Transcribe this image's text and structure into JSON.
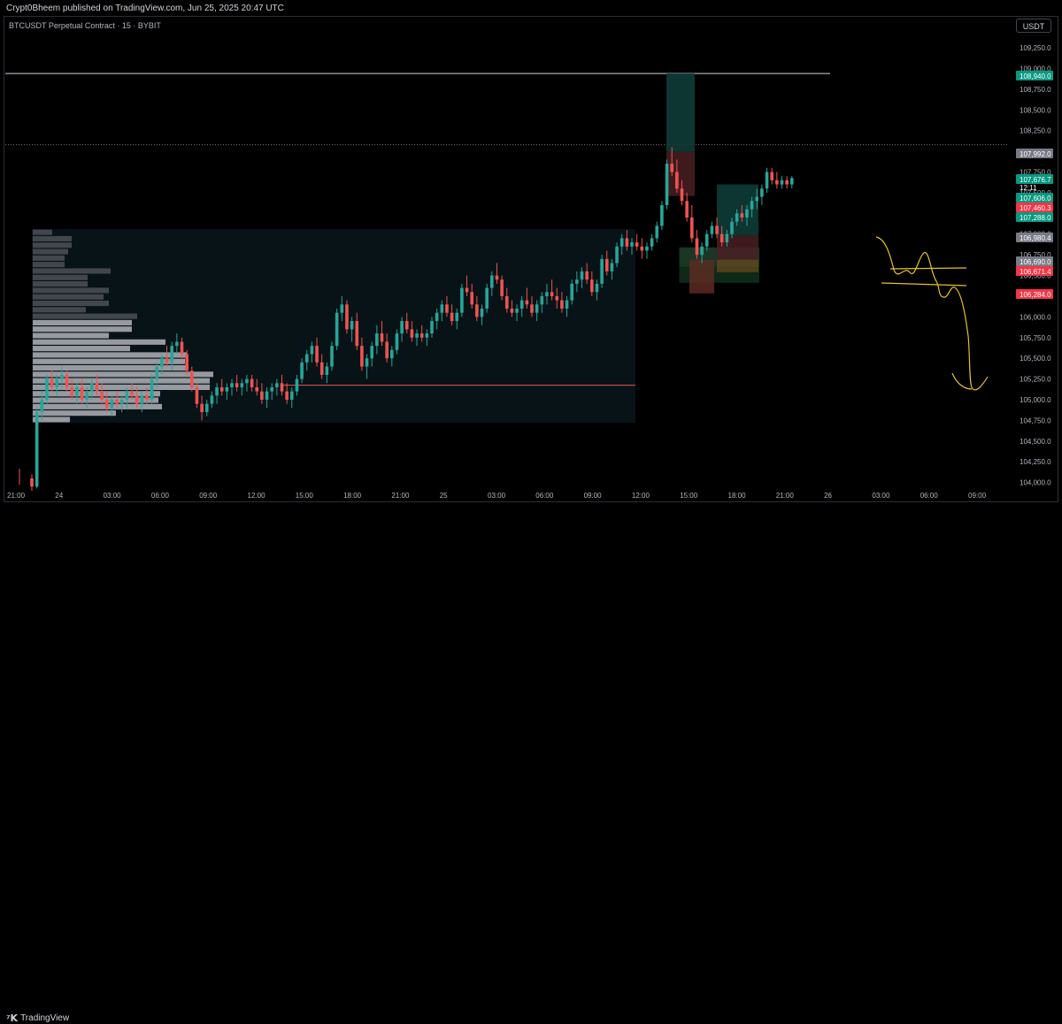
{
  "header": {
    "published_text": "Crypt0Bheem published on TradingView.com, Jun 25, 2025 20:47 UTC"
  },
  "chart": {
    "symbol_label": "BTCUSDT Perpetual Contract · 15 · BYBIT",
    "currency": "USDT"
  },
  "footer": {
    "logo_text": "TradingView"
  },
  "colors": {
    "up": "#26a69a",
    "down": "#ef5350",
    "bg": "#000000",
    "annotation": "#e6c229",
    "grid_text": "#b2b5be"
  },
  "chart_data": {
    "type": "candlestick",
    "interval": "15",
    "exchange": "BYBIT",
    "ylim": [
      103900,
      109400
    ],
    "price_ticks": [
      "109,250.0",
      "109,000.0",
      "108,750.0",
      "108,500.0",
      "108,250.0",
      "108,000.0",
      "107,750.0",
      "107,500.0",
      "107,250.0",
      "107,000.0",
      "106,750.0",
      "106,500.0",
      "106,250.0",
      "106,000.0",
      "105,750.0",
      "105,500.0",
      "105,250.0",
      "105,000.0",
      "104,750.0",
      "104,500.0",
      "104,250.0",
      "104,000.0"
    ],
    "time_ticks": [
      "21:00",
      "24",
      "03:00",
      "06:00",
      "09:00",
      "12:00",
      "15:00",
      "18:00",
      "21:00",
      "25",
      "03:00",
      "06:00",
      "09:00",
      "12:00",
      "15:00",
      "18:00",
      "21:00",
      "26",
      "03:00",
      "06:00",
      "09:00"
    ],
    "price_labels": [
      {
        "text": "108,940.0",
        "value": 108940,
        "kind": "up"
      },
      {
        "text": "107,992.0",
        "value": 107992,
        "kind": "gray"
      },
      {
        "text": "107,676.7",
        "value": 107676.7,
        "kind": "up"
      },
      {
        "text": "12:11",
        "value": 107600,
        "kind": "up"
      },
      {
        "text": "107,606.0",
        "value": 107606,
        "kind": "up"
      },
      {
        "text": "107,460.3",
        "value": 107460.3,
        "kind": "down"
      },
      {
        "text": "107,288.0",
        "value": 107288,
        "kind": "up"
      },
      {
        "text": "106,980.4",
        "value": 106980.4,
        "kind": "gray"
      },
      {
        "text": "106,690.0",
        "value": 106690,
        "kind": "gray"
      },
      {
        "text": "106,671.4",
        "value": 106671.4,
        "kind": "down"
      },
      {
        "text": "106,284.0",
        "value": 106284,
        "kind": "down"
      }
    ],
    "horizontal_lines": [
      {
        "value": 108940,
        "style": "solid",
        "color": "#d1d4dc"
      },
      {
        "value": 108080,
        "style": "dotted",
        "color": "#787b86"
      },
      {
        "value": 105175,
        "style": "solid",
        "color": "#ef5350"
      }
    ],
    "candles": [
      [
        104050,
        104100,
        103900,
        103950
      ],
      [
        103950,
        104900,
        103930,
        104850
      ],
      [
        104850,
        105100,
        104750,
        105000
      ],
      [
        105000,
        105300,
        104950,
        105250
      ],
      [
        105250,
        105350,
        105100,
        105150
      ],
      [
        105150,
        105300,
        105050,
        105250
      ],
      [
        105250,
        105400,
        105150,
        105300
      ],
      [
        105300,
        105350,
        105100,
        105150
      ],
      [
        105150,
        105250,
        105000,
        105050
      ],
      [
        105050,
        105200,
        104950,
        105150
      ],
      [
        105150,
        105250,
        104950,
        105000
      ],
      [
        105000,
        105150,
        104900,
        105100
      ],
      [
        105100,
        105250,
        105000,
        105200
      ],
      [
        105200,
        105300,
        105050,
        105100
      ],
      [
        105100,
        105200,
        104950,
        105000
      ],
      [
        105000,
        105100,
        104850,
        104900
      ],
      [
        104900,
        105050,
        104800,
        105000
      ],
      [
        105000,
        105100,
        104900,
        104950
      ],
      [
        104950,
        105050,
        104850,
        105000
      ],
      [
        105000,
        105150,
        104900,
        105100
      ],
      [
        105100,
        105200,
        105000,
        105050
      ],
      [
        105050,
        105150,
        104900,
        104950
      ],
      [
        104950,
        105100,
        104850,
        105050
      ],
      [
        105050,
        105150,
        104950,
        105000
      ],
      [
        105000,
        105300,
        104950,
        105250
      ],
      [
        105250,
        105450,
        105150,
        105400
      ],
      [
        105400,
        105550,
        105300,
        105500
      ],
      [
        105500,
        105650,
        105400,
        105450
      ],
      [
        105450,
        105700,
        105350,
        105650
      ],
      [
        105650,
        105800,
        105550,
        105700
      ],
      [
        105700,
        105750,
        105500,
        105550
      ],
      [
        105550,
        105600,
        105300,
        105350
      ],
      [
        105350,
        105400,
        105100,
        105150
      ],
      [
        105150,
        105200,
        104900,
        104950
      ],
      [
        104950,
        105050,
        104750,
        104850
      ],
      [
        104850,
        105000,
        104800,
        104950
      ],
      [
        104950,
        105100,
        104900,
        105050
      ],
      [
        105050,
        105200,
        104950,
        105150
      ],
      [
        105150,
        105250,
        105050,
        105100
      ],
      [
        105100,
        105200,
        105000,
        105150
      ],
      [
        105150,
        105250,
        105050,
        105200
      ],
      [
        105200,
        105300,
        105100,
        105150
      ],
      [
        105150,
        105250,
        105050,
        105200
      ],
      [
        105200,
        105300,
        105100,
        105250
      ],
      [
        105250,
        105300,
        105100,
        105150
      ],
      [
        105150,
        105250,
        105050,
        105100
      ],
      [
        105100,
        105200,
        104950,
        105000
      ],
      [
        105000,
        105150,
        104900,
        105100
      ],
      [
        105100,
        105200,
        105000,
        105150
      ],
      [
        105150,
        105250,
        105050,
        105200
      ],
      [
        105200,
        105300,
        105050,
        105100
      ],
      [
        105100,
        105200,
        104950,
        105000
      ],
      [
        105000,
        105150,
        104900,
        105100
      ],
      [
        105100,
        105300,
        105050,
        105250
      ],
      [
        105250,
        105500,
        105200,
        105450
      ],
      [
        105450,
        105600,
        105350,
        105550
      ],
      [
        105550,
        105700,
        105450,
        105650
      ],
      [
        105650,
        105750,
        105400,
        105450
      ],
      [
        105450,
        105550,
        105250,
        105300
      ],
      [
        105300,
        105450,
        105200,
        105400
      ],
      [
        105400,
        105700,
        105350,
        105650
      ],
      [
        105650,
        106100,
        105600,
        106050
      ],
      [
        106050,
        106250,
        105950,
        106150
      ],
      [
        106150,
        106200,
        105800,
        105850
      ],
      [
        105850,
        106000,
        105700,
        105950
      ],
      [
        105950,
        106050,
        105600,
        105650
      ],
      [
        105650,
        105750,
        105350,
        105400
      ],
      [
        105400,
        105550,
        105250,
        105500
      ],
      [
        105500,
        105700,
        105400,
        105650
      ],
      [
        105650,
        105900,
        105550,
        105800
      ],
      [
        105800,
        105950,
        105650,
        105700
      ],
      [
        105700,
        105800,
        105450,
        105500
      ],
      [
        105500,
        105650,
        105400,
        105600
      ],
      [
        105600,
        105850,
        105550,
        105800
      ],
      [
        105800,
        106000,
        105700,
        105950
      ],
      [
        105950,
        106050,
        105800,
        105850
      ],
      [
        105850,
        105950,
        105700,
        105750
      ],
      [
        105750,
        105850,
        105650,
        105800
      ],
      [
        105800,
        105900,
        105700,
        105750
      ],
      [
        105750,
        105850,
        105650,
        105800
      ],
      [
        105800,
        106000,
        105750,
        105950
      ],
      [
        105950,
        106100,
        105850,
        106050
      ],
      [
        106050,
        106200,
        105950,
        106150
      ],
      [
        106150,
        106250,
        106000,
        106050
      ],
      [
        106050,
        106150,
        105900,
        105950
      ],
      [
        105950,
        106100,
        105850,
        106050
      ],
      [
        106050,
        106400,
        106000,
        106350
      ],
      [
        106350,
        106500,
        106250,
        106300
      ],
      [
        106300,
        106400,
        106100,
        106150
      ],
      [
        106150,
        106250,
        105950,
        106000
      ],
      [
        106000,
        106150,
        105900,
        106100
      ],
      [
        106100,
        106400,
        106050,
        106350
      ],
      [
        106350,
        106550,
        106250,
        106500
      ],
      [
        106500,
        106650,
        106400,
        106450
      ],
      [
        106450,
        106500,
        106200,
        106250
      ],
      [
        106250,
        106350,
        106050,
        106100
      ],
      [
        106100,
        106200,
        106000,
        106050
      ],
      [
        106050,
        106150,
        105950,
        106100
      ],
      [
        106100,
        106250,
        106000,
        106200
      ],
      [
        106200,
        106350,
        106100,
        106150
      ],
      [
        106150,
        106250,
        106000,
        106050
      ],
      [
        106050,
        106200,
        105950,
        106150
      ],
      [
        106150,
        106300,
        106050,
        106250
      ],
      [
        106250,
        106400,
        106150,
        106300
      ],
      [
        106300,
        106450,
        106200,
        106250
      ],
      [
        106250,
        106350,
        106100,
        106200
      ],
      [
        106200,
        106300,
        106050,
        106100
      ],
      [
        106100,
        106250,
        106000,
        106200
      ],
      [
        106200,
        106450,
        106150,
        106400
      ],
      [
        106400,
        106550,
        106300,
        106450
      ],
      [
        106450,
        106600,
        106350,
        106550
      ],
      [
        106550,
        106650,
        106400,
        106450
      ],
      [
        106450,
        106550,
        106250,
        106300
      ],
      [
        106300,
        106450,
        106200,
        106400
      ],
      [
        106400,
        106750,
        106350,
        106700
      ],
      [
        106700,
        106800,
        106500,
        106550
      ],
      [
        106550,
        106700,
        106450,
        106650
      ],
      [
        106650,
        106900,
        106600,
        106850
      ],
      [
        106850,
        107000,
        106750,
        106950
      ],
      [
        106950,
        107050,
        106800,
        106850
      ],
      [
        106850,
        106950,
        106750,
        106900
      ],
      [
        106900,
        107000,
        106800,
        106850
      ],
      [
        106850,
        106950,
        106700,
        106800
      ],
      [
        106800,
        106900,
        106700,
        106850
      ],
      [
        106850,
        107000,
        106800,
        106950
      ],
      [
        106950,
        107150,
        106900,
        107100
      ],
      [
        107100,
        107400,
        107050,
        107350
      ],
      [
        107350,
        107900,
        107300,
        107850
      ],
      [
        107850,
        108050,
        107700,
        107750
      ],
      [
        107750,
        107900,
        107500,
        107550
      ],
      [
        107550,
        107650,
        107350,
        107400
      ],
      [
        107400,
        107500,
        107150,
        107200
      ],
      [
        107200,
        107350,
        106900,
        106950
      ],
      [
        106950,
        107050,
        106700,
        106750
      ],
      [
        106750,
        106900,
        106650,
        106850
      ],
      [
        106850,
        107050,
        106800,
        107000
      ],
      [
        107000,
        107150,
        106950,
        107100
      ],
      [
        107100,
        107200,
        106950,
        107000
      ],
      [
        107000,
        107100,
        106850,
        106900
      ],
      [
        106900,
        107050,
        106850,
        107000
      ],
      [
        107000,
        107200,
        106950,
        107150
      ],
      [
        107150,
        107300,
        107100,
        107250
      ],
      [
        107250,
        107350,
        107150,
        107200
      ],
      [
        107200,
        107350,
        107100,
        107300
      ],
      [
        107300,
        107450,
        107200,
        107400
      ],
      [
        107400,
        107550,
        107300,
        107450
      ],
      [
        107450,
        107600,
        107350,
        107550
      ],
      [
        107550,
        107800,
        107500,
        107750
      ],
      [
        107750,
        107800,
        107600,
        107650
      ],
      [
        107650,
        107750,
        107550,
        107600
      ],
      [
        107600,
        107700,
        107550,
        107650
      ],
      [
        107650,
        107700,
        107550,
        107600
      ],
      [
        107600,
        107700,
        107550,
        107677
      ]
    ],
    "position_boxes": [
      {
        "name": "long-box-left",
        "t_start": 130,
        "t_end": 159,
        "entry": 106700,
        "target": 106690,
        "stop": 106480
      },
      {
        "name": "short-box-top",
        "t_start": 132,
        "t_end": 137,
        "entry": 107992,
        "target": 108940,
        "stop": 107460
      }
    ],
    "volume_profile": {
      "price_low": 104720,
      "price_high": 107060
    }
  }
}
